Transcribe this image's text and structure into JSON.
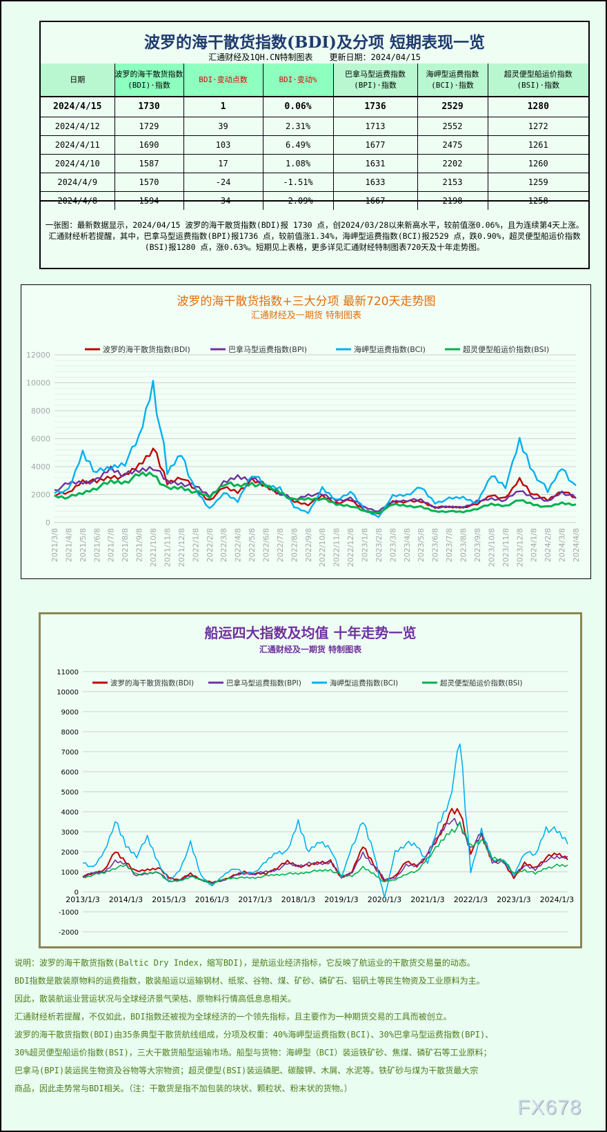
{
  "table": {
    "title": "波罗的海干散货指数(BDI)及分项 短期表现一览",
    "source": "汇通财经及1QH.CN特制图表",
    "updated": "更新日期：2024/04/15",
    "headers": [
      [
        "日期"
      ],
      [
        "波罗的海干散货指数",
        "(BDI)·指数"
      ],
      [
        "BDI·变动点数"
      ],
      [
        "BDI·变动%"
      ],
      [
        "巴拿马型运费指数",
        "(BPI)·指数"
      ],
      [
        "海岬型运费指数",
        "(BCI)·指数"
      ],
      [
        "超灵便型船运价指数",
        "(BSI)·指数"
      ]
    ],
    "rows": [
      [
        "2024/4/15",
        "1730",
        "1",
        "0.06%",
        "1736",
        "2529",
        "1280"
      ],
      [
        "2024/4/12",
        "1729",
        "39",
        "2.31%",
        "1713",
        "2552",
        "1272"
      ],
      [
        "2024/4/11",
        "1690",
        "103",
        "6.49%",
        "1677",
        "2475",
        "1261"
      ],
      [
        "2024/4/10",
        "1587",
        "17",
        "1.08%",
        "1631",
        "2202",
        "1260"
      ],
      [
        "2024/4/9",
        "1570",
        "-24",
        "-1.51%",
        "1633",
        "2153",
        "1259"
      ],
      [
        "2024/4/8",
        "1594",
        "-34",
        "-2.09%",
        "1667",
        "2198",
        "1258"
      ]
    ],
    "note": "一张图：最新数据显示，2024/04/15 波罗的海干散货指数(BDI)报 1730 点，创2024/03/28以来新高水平，较前值涨0.06%，且为连续第4天上涨。汇通财经析若提醒，其中，巴拿马型运费指数(BPI)报1736 点，较前值涨1.34%，海岬型运费指数(BCI)报2529 点，跌0.90%，超灵便型船运价指数(BSI)报1280 点，涨0.63%。短期见上表格，更多详见汇通财经特制图表720天及十年走势图。"
  },
  "chart_data": [
    {
      "type": "line",
      "title": "波罗的海干散货指数+三大分项  最新720天走势图",
      "subtitle": "汇通财经及一期货  特制图表",
      "title_color": "#e46c0a",
      "legend": "top",
      "grid": true,
      "ylim": [
        0,
        12000
      ],
      "yticks": [
        0,
        2000,
        4000,
        6000,
        8000,
        10000,
        12000
      ],
      "x": [
        "2021/3/8",
        "2021/4/8",
        "2021/5/8",
        "2021/6/8",
        "2021/7/8",
        "2021/8/8",
        "2021/9/8",
        "2021/10/8",
        "2021/11/8",
        "2021/12/8",
        "2022/1/8",
        "2022/2/8",
        "2022/3/8",
        "2022/4/8",
        "2022/5/8",
        "2022/6/8",
        "2022/7/8",
        "2022/8/8",
        "2022/9/8",
        "2022/10/8",
        "2022/11/8",
        "2022/12/8",
        "2023/1/8",
        "2023/2/8",
        "2023/3/8",
        "2023/4/8",
        "2023/5/8",
        "2023/6/8",
        "2023/7/8",
        "2023/8/8",
        "2023/9/8",
        "2023/10/8",
        "2023/11/8",
        "2023/12/8",
        "2024/1/8",
        "2024/2/8",
        "2024/3/8",
        "2024/4/8"
      ],
      "series": [
        {
          "name": "波罗的海干散货指数(BDI)",
          "color": "#c00000",
          "values": [
            2000,
            2100,
            3000,
            2900,
            3300,
            3300,
            4100,
            5300,
            2800,
            3300,
            2300,
            1600,
            2500,
            2200,
            3000,
            2600,
            2100,
            1500,
            1300,
            1900,
            1400,
            1600,
            900,
            600,
            1500,
            1500,
            1500,
            1100,
            1100,
            1100,
            1300,
            2000,
            1700,
            3100,
            2000,
            1600,
            2300,
            1700
          ]
        },
        {
          "name": "巴拿马型运费指数(BPI)",
          "color": "#7030a0",
          "values": [
            2300,
            2800,
            2900,
            3000,
            3900,
            3400,
            3700,
            4000,
            2900,
            2800,
            2600,
            1900,
            2800,
            3300,
            3100,
            2700,
            2100,
            1600,
            2000,
            2000,
            1600,
            1700,
            1100,
            800,
            1500,
            1600,
            1600,
            1100,
            1100,
            1100,
            1500,
            1700,
            1600,
            2300,
            1800,
            1500,
            2200,
            1750
          ]
        },
        {
          "name": "海岬型运费指数(BCI)",
          "color": "#00b0f0",
          "values": [
            2200,
            2300,
            5000,
            3600,
            3900,
            4300,
            6000,
            10000,
            3500,
            5000,
            2300,
            1000,
            2100,
            1500,
            3500,
            2600,
            2500,
            1100,
            700,
            2400,
            1600,
            2200,
            900,
            400,
            1900,
            2000,
            2500,
            1400,
            1700,
            1800,
            1400,
            3400,
            2600,
            5800,
            3600,
            2200,
            4000,
            2500
          ]
        },
        {
          "name": "超灵便型船运价指数(BSI)",
          "color": "#00b050",
          "values": [
            1900,
            1800,
            2100,
            2500,
            2900,
            2900,
            3400,
            3500,
            2400,
            2500,
            2200,
            1800,
            2800,
            2600,
            2800,
            2600,
            2200,
            1600,
            1700,
            1700,
            1300,
            1200,
            800,
            700,
            1300,
            1200,
            1100,
            800,
            800,
            750,
            1000,
            1300,
            1200,
            1600,
            1300,
            1100,
            1400,
            1300
          ]
        }
      ]
    },
    {
      "type": "line",
      "title": "船运四大指数及均值 十年走势一览",
      "subtitle": "汇通财经及一期货 特制图表",
      "title_color": "#7030a0",
      "legend": "top",
      "grid": true,
      "ylim": [
        -2000,
        11000
      ],
      "yticks": [
        -2000,
        -1000,
        0,
        1000,
        2000,
        3000,
        4000,
        5000,
        6000,
        7000,
        8000,
        9000,
        10000,
        11000
      ],
      "xticks": [
        "2013/1/3",
        "2014/1/3",
        "2015/1/3",
        "2016/1/3",
        "2017/1/3",
        "2018/1/3",
        "2019/1/3",
        "2020/1/3",
        "2021/1/3",
        "2022/1/3",
        "2023/1/3",
        "2024/1/3"
      ],
      "x_quarters_from": "2013/1/3",
      "series": [
        {
          "name": "波罗的海干散货指数(BDI)",
          "color": "#c00000",
          "values": [
            800,
            900,
            1100,
            2000,
            1500,
            1000,
            1100,
            1200,
            700,
            600,
            900,
            600,
            450,
            600,
            800,
            1000,
            900,
            900,
            1200,
            1500,
            1300,
            1300,
            1500,
            1500,
            700,
            1000,
            2300,
            1400,
            500,
            800,
            1500,
            1300,
            1800,
            2700,
            3900,
            4000,
            2000,
            2800,
            1600,
            1500,
            700,
            1400,
            1200,
            1700,
            1900,
            1700
          ]
        },
        {
          "name": "巴拿马型运费指数(BPI)",
          "color": "#7030a0",
          "values": [
            750,
            950,
            1000,
            1500,
            1400,
            800,
            900,
            1000,
            500,
            600,
            800,
            600,
            450,
            550,
            800,
            900,
            900,
            1000,
            1100,
            1400,
            1300,
            1400,
            1400,
            1500,
            700,
            1000,
            1900,
            1300,
            600,
            700,
            1300,
            1300,
            1900,
            2800,
            3600,
            3300,
            2200,
            2900,
            1500,
            1500,
            900,
            1300,
            1100,
            1600,
            1700,
            1750
          ]
        },
        {
          "name": "海岬型运费指数(BCI)",
          "color": "#00b0f0",
          "values": [
            1500,
            1200,
            2000,
            3500,
            2300,
            1800,
            2700,
            1500,
            500,
            1100,
            2400,
            800,
            300,
            800,
            1200,
            900,
            1000,
            1500,
            2000,
            2000,
            3500,
            2000,
            2500,
            2200,
            700,
            2300,
            3500,
            2000,
            -300,
            2000,
            2400,
            2300,
            1500,
            3300,
            4500,
            7500,
            1000,
            3000,
            1600,
            1600,
            800,
            2000,
            1800,
            3200,
            3000,
            2500
          ]
        },
        {
          "name": "超灵便型船运价指数(BSI)",
          "color": "#00b050",
          "values": [
            700,
            850,
            950,
            1200,
            1300,
            900,
            900,
            1000,
            500,
            550,
            750,
            600,
            400,
            600,
            700,
            700,
            700,
            800,
            850,
            900,
            900,
            1000,
            1050,
            1100,
            800,
            800,
            1200,
            900,
            500,
            600,
            900,
            1000,
            1700,
            2300,
            3000,
            3300,
            2300,
            2600,
            1700,
            1600,
            900,
            1100,
            900,
            1200,
            1300,
            1300
          ]
        }
      ]
    }
  ],
  "watermarks": [
    "FX678",
    "1QH.CN"
  ],
  "notes": [
    "说明：波罗的海干散货指数(Baltic Dry Index，缩写BDI)，是航运业经济指标，它反映了航运业的干散货交易量的动态。",
    "BDI指数是散装原物料的运费指数，散装船运以运输钢材、纸浆、谷物、煤、矿砂、磷矿石、铝矾土等民生物资及工业原料为主。",
    "因此，散装航运业营运状况与全球经济景气荣枯、原物料行情高低息息相关。",
    "汇通财经析若提醒，不仅如此，BDI指数还被视为全球经济的一个领先指标，且主要作为一种期货交易的工具而被创立。",
    "波罗的海干散货指数(BDI)由35条典型干散货航线组成，分项及权重：40%海岬型运费指数(BCI)、30%巴拿马型运费指数(BPI)、",
    "30%超灵便型船运价指数(BSI)，三大干散货船型运输市场。船型与货物：海岬型（BCI）装运铁矿砂、焦煤、磷矿石等工业原料；",
    "巴拿马(BPI)装运民生物资及谷物等大宗物资；超灵便型(BSI)装运磷肥、碳酸钾、木屑、水泥等。铁矿砂与煤为干散货最大宗",
    "商品，因此走势常与BDI相关。（注：干散货是指不加包装的块状、颗粒状、粉末状的货物。）"
  ]
}
